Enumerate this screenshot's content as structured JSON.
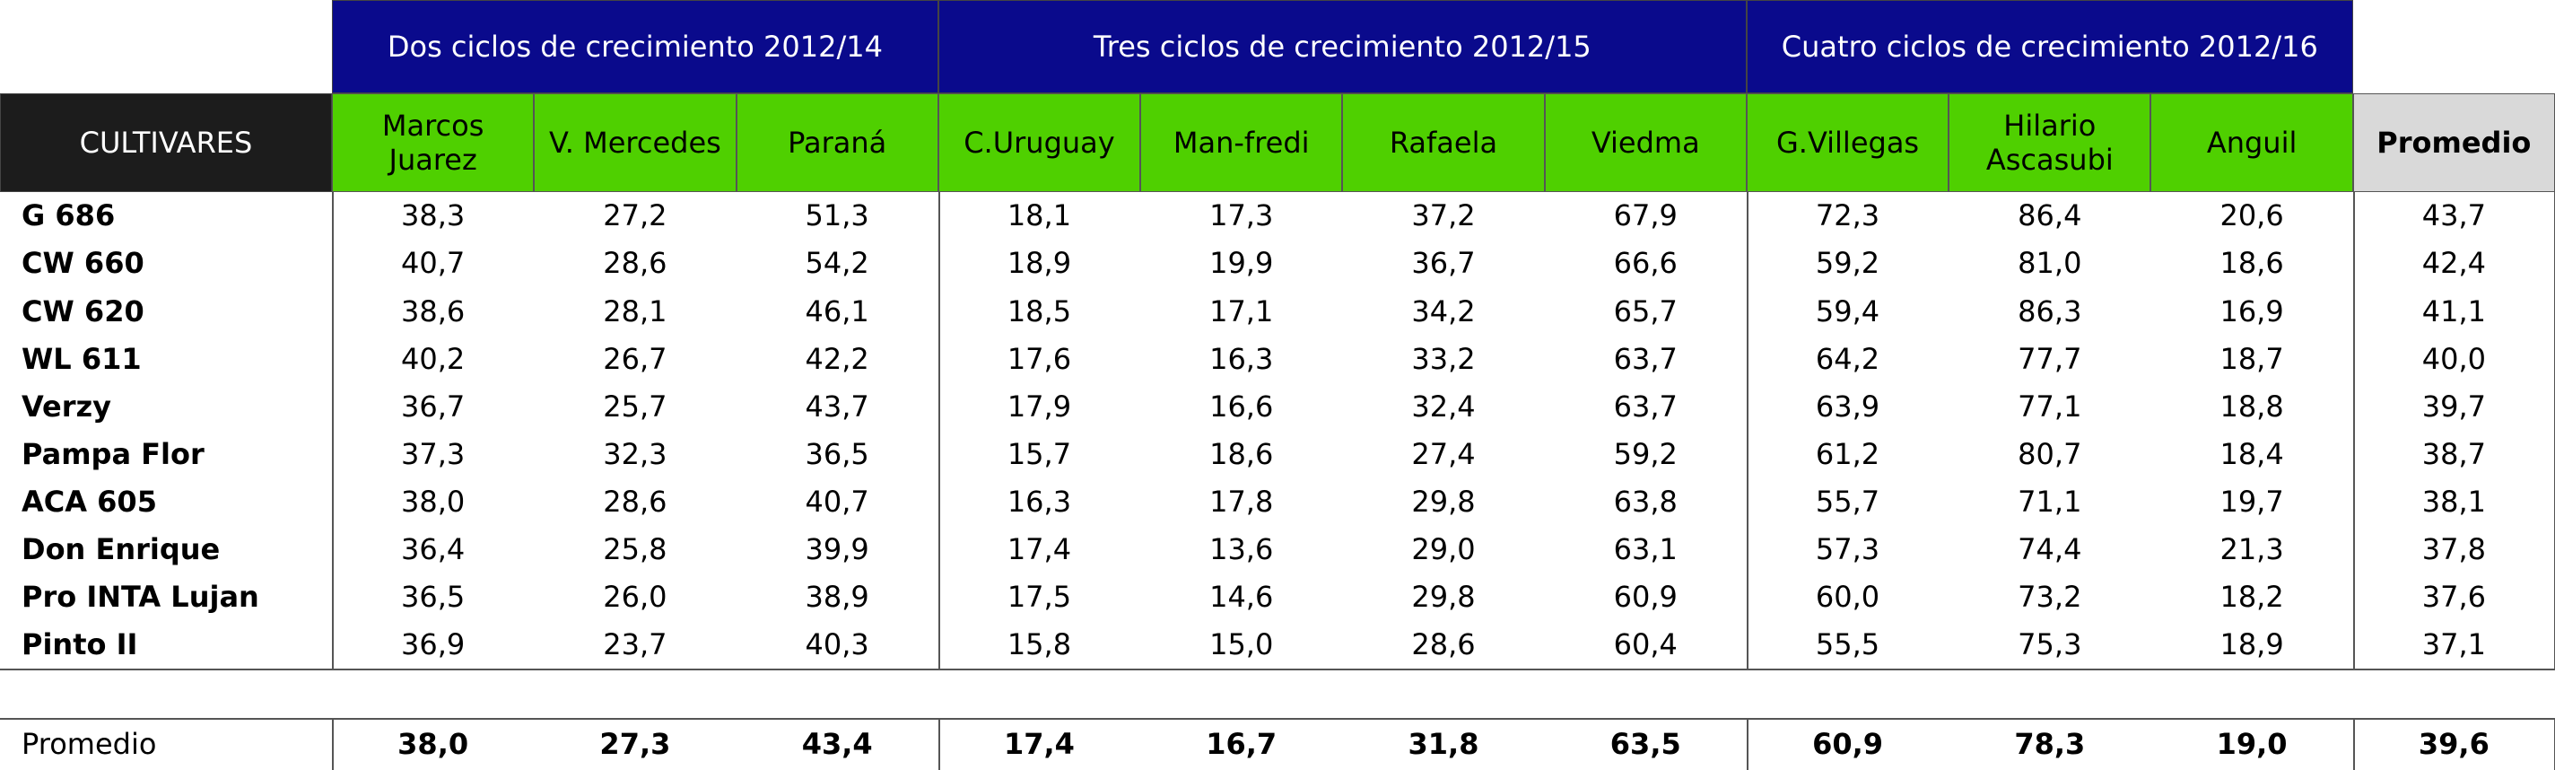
{
  "group_headers": [
    "Dos ciclos de crecimiento 2012/14",
    "Tres ciclos de crecimiento 2012/15",
    "Cuatro ciclos de crecimiento 2012/16"
  ],
  "header": {
    "first": "CULTIVARES",
    "columns": [
      "Marcos Juarez",
      "V. Mercedes",
      "Paraná",
      "C.Uruguay",
      "Man-fredi",
      "Rafaela",
      "Viedma",
      "G.Villegas",
      "Hilario Ascasubi",
      "Anguil"
    ],
    "average": "Promedio"
  },
  "rows": [
    {
      "name": "G 686",
      "values": [
        "38,3",
        "27,2",
        "51,3",
        "18,1",
        "17,3",
        "37,2",
        "67,9",
        "72,3",
        "86,4",
        "20,6"
      ],
      "average": "43,7"
    },
    {
      "name": "CW 660",
      "values": [
        "40,7",
        "28,6",
        "54,2",
        "18,9",
        "19,9",
        "36,7",
        "66,6",
        "59,2",
        "81,0",
        "18,6"
      ],
      "average": "42,4"
    },
    {
      "name": "CW 620",
      "values": [
        "38,6",
        "28,1",
        "46,1",
        "18,5",
        "17,1",
        "34,2",
        "65,7",
        "59,4",
        "86,3",
        "16,9"
      ],
      "average": "41,1"
    },
    {
      "name": "WL 611",
      "values": [
        "40,2",
        "26,7",
        "42,2",
        "17,6",
        "16,3",
        "33,2",
        "63,7",
        "64,2",
        "77,7",
        "18,7"
      ],
      "average": "40,0"
    },
    {
      "name": "Verzy",
      "values": [
        "36,7",
        "25,7",
        "43,7",
        "17,9",
        "16,6",
        "32,4",
        "63,7",
        "63,9",
        "77,1",
        "18,8"
      ],
      "average": "39,7"
    },
    {
      "name": "Pampa Flor",
      "values": [
        "37,3",
        "32,3",
        "36,5",
        "15,7",
        "18,6",
        "27,4",
        "59,2",
        "61,2",
        "80,7",
        "18,4"
      ],
      "average": "38,7"
    },
    {
      "name": "ACA 605",
      "values": [
        "38,0",
        "28,6",
        "40,7",
        "16,3",
        "17,8",
        "29,8",
        "63,8",
        "55,7",
        "71,1",
        "19,7"
      ],
      "average": "38,1"
    },
    {
      "name": "Don Enrique",
      "values": [
        "36,4",
        "25,8",
        "39,9",
        "17,4",
        "13,6",
        "29,0",
        "63,1",
        "57,3",
        "74,4",
        "21,3"
      ],
      "average": "37,8"
    },
    {
      "name": "Pro INTA Lujan",
      "values": [
        "36,5",
        "26,0",
        "38,9",
        "17,5",
        "14,6",
        "29,8",
        "60,9",
        "60,0",
        "73,2",
        "18,2"
      ],
      "average": "37,6"
    },
    {
      "name": "Pinto II",
      "values": [
        "36,9",
        "23,7",
        "40,3",
        "15,8",
        "15,0",
        "28,6",
        "60,4",
        "55,5",
        "75,3",
        "18,9"
      ],
      "average": "37,1"
    }
  ],
  "footer": {
    "label": "Promedio",
    "values": [
      "38,0",
      "27,3",
      "43,4",
      "17,4",
      "16,7",
      "31,8",
      "63,5",
      "60,9",
      "78,3",
      "19,0"
    ],
    "average": "39,6"
  }
}
